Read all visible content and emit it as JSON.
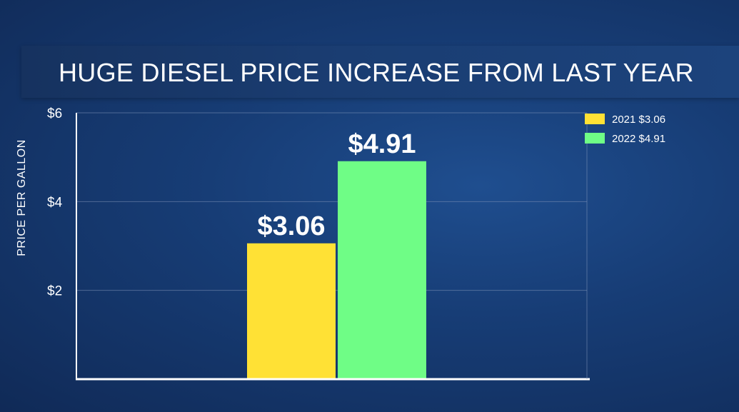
{
  "title": "HUGE DIESEL PRICE INCREASE FROM LAST YEAR",
  "chart_data": {
    "type": "bar",
    "title": "HUGE DIESEL PRICE INCREASE FROM LAST YEAR",
    "xlabel": "",
    "ylabel": "PRICE PER GALLON",
    "ylim": [
      0,
      6
    ],
    "yticks": [
      {
        "value": 2,
        "label": "$2"
      },
      {
        "value": 4,
        "label": "$4"
      },
      {
        "value": 6,
        "label": "$6"
      }
    ],
    "grid": true,
    "legend_position": "top-right",
    "series": [
      {
        "name": "2021 $3.06",
        "value": 3.06,
        "data_label": "$3.06",
        "color": "#ffe135"
      },
      {
        "name": "2022 $4.91",
        "value": 4.91,
        "data_label": "$4.91",
        "color": "#6ffd86"
      }
    ]
  }
}
